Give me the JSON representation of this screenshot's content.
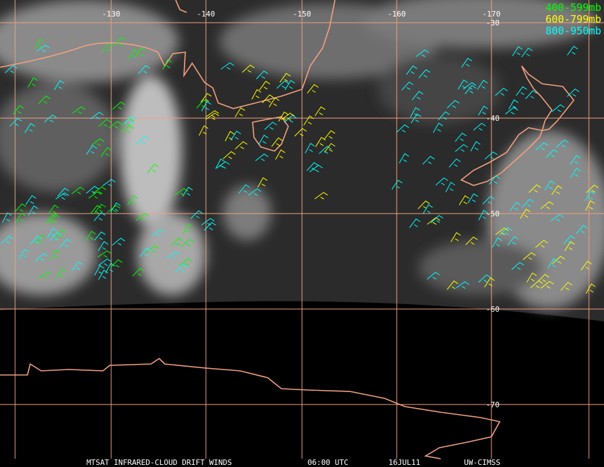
{
  "map": {
    "longitude_labels": [
      "-130",
      "-140",
      "-150",
      "-160",
      "-170"
    ],
    "latitude_labels": [
      "-30",
      "-40",
      "-50",
      "-60",
      "-70"
    ],
    "legend": [
      {
        "label": "400-599mb",
        "color": "#00ff00"
      },
      {
        "label": "600-799mb",
        "color": "#ffff00"
      },
      {
        "label": "800-950mb",
        "color": "#00ffff"
      }
    ],
    "footer": {
      "product": "MTSAT INFRARED-CLOUD DRIFT WINDS",
      "time": "06:00 UTC",
      "date": "16JUL11",
      "credit": "UW-CIMSS"
    }
  }
}
